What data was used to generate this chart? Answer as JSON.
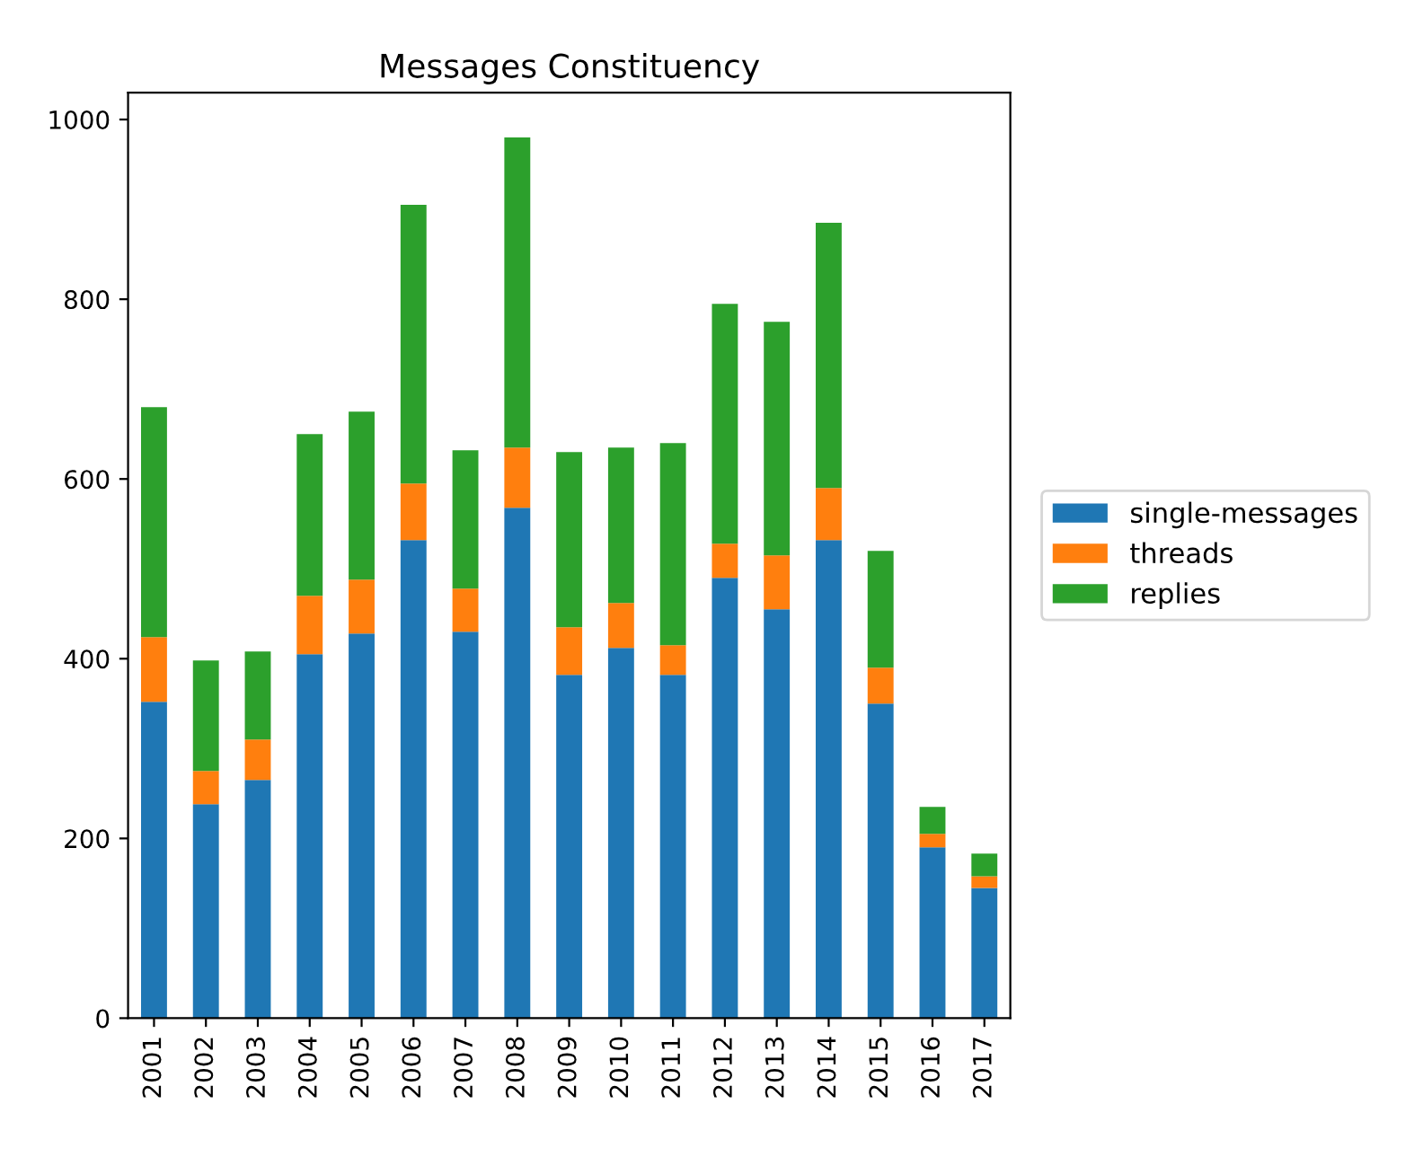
{
  "chart_data": {
    "type": "bar",
    "title": "Messages Constituency",
    "stacked": true,
    "categories": [
      "2001",
      "2002",
      "2003",
      "2004",
      "2005",
      "2006",
      "2007",
      "2008",
      "2009",
      "2010",
      "2011",
      "2012",
      "2013",
      "2014",
      "2015",
      "2016",
      "2017"
    ],
    "series": [
      {
        "name": "single-messages",
        "color": "#1f77b4",
        "values": [
          352,
          238,
          265,
          405,
          428,
          532,
          430,
          568,
          382,
          412,
          382,
          490,
          455,
          532,
          350,
          190,
          145
        ]
      },
      {
        "name": "threads",
        "color": "#ff7f0e",
        "values": [
          72,
          37,
          45,
          65,
          60,
          63,
          48,
          67,
          53,
          50,
          33,
          38,
          60,
          58,
          40,
          15,
          13
        ]
      },
      {
        "name": "replies",
        "color": "#2ca02c",
        "values": [
          256,
          123,
          98,
          180,
          187,
          310,
          154,
          345,
          195,
          173,
          225,
          267,
          260,
          295,
          130,
          30,
          25
        ]
      }
    ],
    "ylim": [
      0,
      1030
    ],
    "yticks": [
      0,
      200,
      400,
      600,
      800,
      1000
    ],
    "grid": false,
    "legend": "right"
  }
}
